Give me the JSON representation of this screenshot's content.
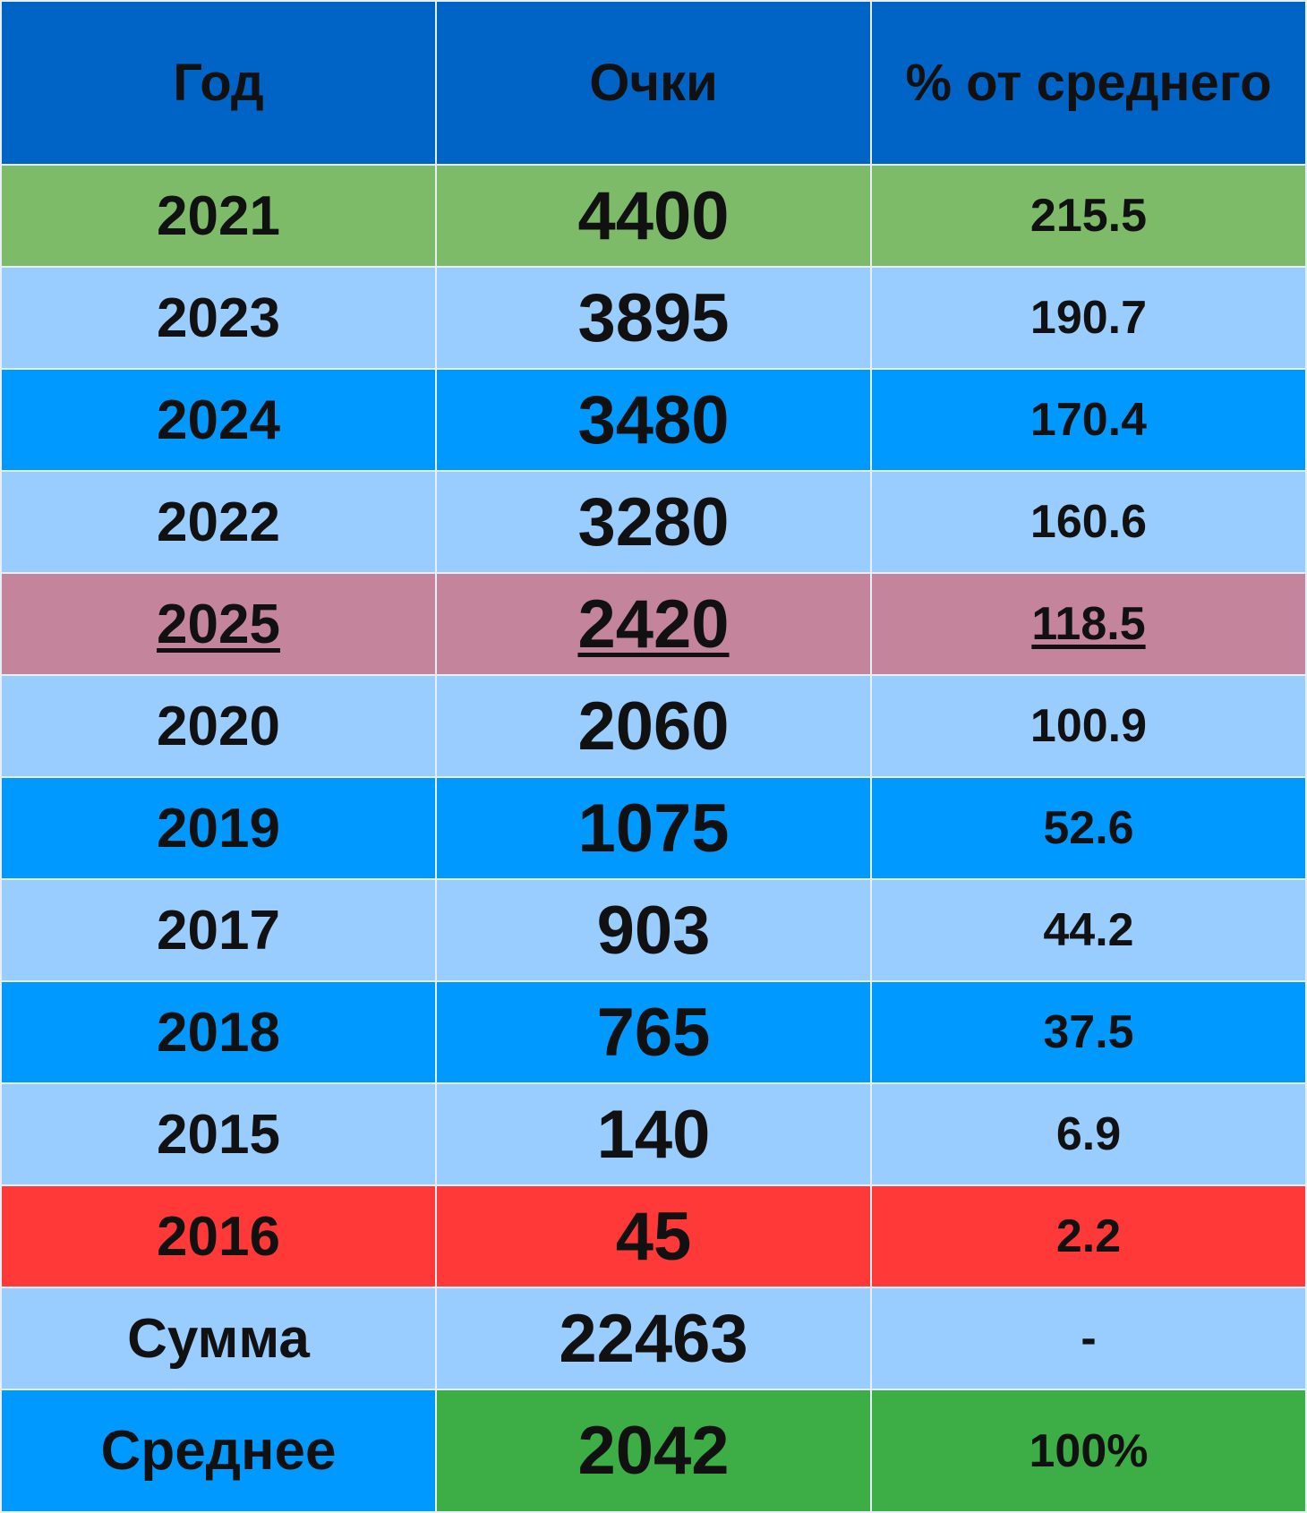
{
  "table": {
    "header": [
      "Год",
      "Очки",
      "% от среднего"
    ],
    "rows": [
      [
        "2021",
        "4400",
        "215.5"
      ],
      [
        "2023",
        "3895",
        "190.7"
      ],
      [
        "2024",
        "3480",
        "170.4"
      ],
      [
        "2022",
        "3280",
        "160.6"
      ],
      [
        "2025",
        "2420",
        "118.5"
      ],
      [
        "2020",
        "2060",
        "100.9"
      ],
      [
        "2019",
        "1075",
        "52.6"
      ],
      [
        "2017",
        "903",
        "44.2"
      ],
      [
        "2018",
        "765",
        "37.5"
      ],
      [
        "2015",
        "140",
        "6.9"
      ],
      [
        "2016",
        "45",
        "2.2"
      ],
      [
        "Сумма",
        "22463",
        "-"
      ],
      [
        "Среднее",
        "2042",
        "100%"
      ]
    ]
  }
}
